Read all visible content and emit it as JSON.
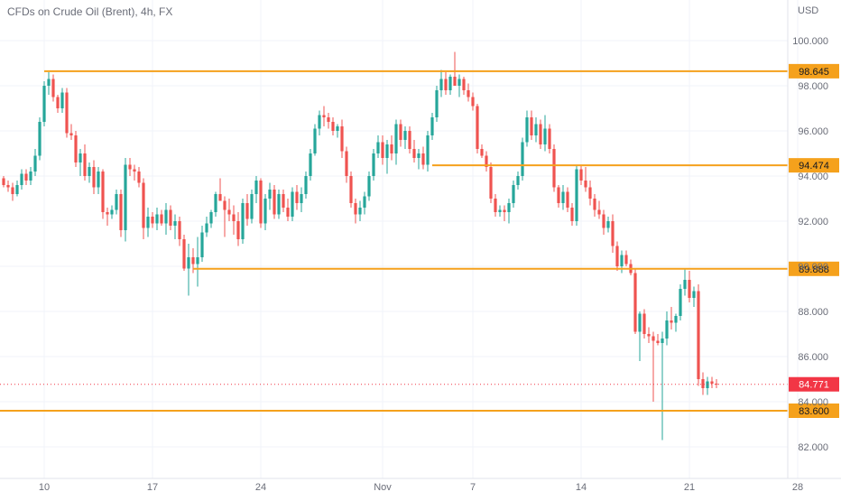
{
  "header": {
    "title": "CFDs on Crude Oil (Brent), 4h, FX",
    "currency": "USD"
  },
  "colors": {
    "up": "#26a69a",
    "down": "#ef5350",
    "level_line": "#f5a11c",
    "level_label_bg": "#f5a11c",
    "price_label_bg": "#f23645",
    "axis_text": "#6a6d78"
  },
  "chart_data": {
    "type": "candlestick",
    "ylim": [
      81.0,
      101.0
    ],
    "y_ticks": [
      82.0,
      84.0,
      86.0,
      88.0,
      90.0,
      92.0,
      94.0,
      96.0,
      98.0,
      100.0
    ],
    "y_tick_labels": [
      "82.000",
      "84.000",
      "86.000",
      "88.000",
      "90.000",
      "92.000",
      "94.000",
      "96.000",
      "98.000",
      "100.000"
    ],
    "x_ticks": [
      {
        "label": "10",
        "bar": 9
      },
      {
        "label": "17",
        "bar": 33
      },
      {
        "label": "24",
        "bar": 57
      },
      {
        "label": "Nov",
        "bar": 84
      },
      {
        "label": "7",
        "bar": 104
      },
      {
        "label": "14",
        "bar": 128
      },
      {
        "label": "21",
        "bar": 152
      },
      {
        "label": "28",
        "bar": 176
      }
    ],
    "candles": [
      [
        93.9,
        94.0,
        93.5,
        93.6
      ],
      [
        93.6,
        93.8,
        93.3,
        93.5
      ],
      [
        93.5,
        93.7,
        92.9,
        93.2
      ],
      [
        93.2,
        93.8,
        93.1,
        93.6
      ],
      [
        93.6,
        94.3,
        93.4,
        94.1
      ],
      [
        94.1,
        94.3,
        93.6,
        93.8
      ],
      [
        93.8,
        94.4,
        93.6,
        94.2
      ],
      [
        94.2,
        95.2,
        94.0,
        94.9
      ],
      [
        94.9,
        96.6,
        94.7,
        96.4
      ],
      [
        96.4,
        98.2,
        96.2,
        98.0
      ],
      [
        98.0,
        98.6,
        97.6,
        98.3
      ],
      [
        98.3,
        98.5,
        97.3,
        97.5
      ],
      [
        97.5,
        97.6,
        96.8,
        97.0
      ],
      [
        97.0,
        97.9,
        96.8,
        97.7
      ],
      [
        97.7,
        97.9,
        95.7,
        95.9
      ],
      [
        95.9,
        96.3,
        95.6,
        95.8
      ],
      [
        95.8,
        96.0,
        94.4,
        94.6
      ],
      [
        94.6,
        95.2,
        94.0,
        95.0
      ],
      [
        95.0,
        95.4,
        93.8,
        94.0
      ],
      [
        94.0,
        94.6,
        93.7,
        94.4
      ],
      [
        94.4,
        94.7,
        93.2,
        93.5
      ],
      [
        93.5,
        94.4,
        93.2,
        94.2
      ],
      [
        94.2,
        94.3,
        92.1,
        92.4
      ],
      [
        92.4,
        92.6,
        91.8,
        92.3
      ],
      [
        92.3,
        92.7,
        92.1,
        92.5
      ],
      [
        92.5,
        93.4,
        92.3,
        93.2
      ],
      [
        93.2,
        93.4,
        91.3,
        91.6
      ],
      [
        91.6,
        94.8,
        91.1,
        94.5
      ],
      [
        94.5,
        94.8,
        94.0,
        94.3
      ],
      [
        94.3,
        94.5,
        93.8,
        94.2
      ],
      [
        94.2,
        94.4,
        93.5,
        93.7
      ],
      [
        93.7,
        93.9,
        91.2,
        91.7
      ],
      [
        91.7,
        92.6,
        91.3,
        92.2
      ],
      [
        92.2,
        92.4,
        91.7,
        91.9
      ],
      [
        91.9,
        92.6,
        91.6,
        92.3
      ],
      [
        92.3,
        92.5,
        91.8,
        91.9
      ],
      [
        91.9,
        92.8,
        91.4,
        92.5
      ],
      [
        92.5,
        92.7,
        91.6,
        91.8
      ],
      [
        91.8,
        92.3,
        91.2,
        92.0
      ],
      [
        92.0,
        92.2,
        90.9,
        91.2
      ],
      [
        91.2,
        91.4,
        89.8,
        89.9
      ],
      [
        89.9,
        91.0,
        88.7,
        90.4
      ],
      [
        90.4,
        90.8,
        89.7,
        90.1
      ],
      [
        90.1,
        91.3,
        89.1,
        90.4
      ],
      [
        90.4,
        91.8,
        90.2,
        91.5
      ],
      [
        91.5,
        92.2,
        91.3,
        91.9
      ],
      [
        91.9,
        92.5,
        91.7,
        92.4
      ],
      [
        92.4,
        93.3,
        92.2,
        93.2
      ],
      [
        93.2,
        93.9,
        92.9,
        92.9
      ],
      [
        92.9,
        93.1,
        91.3,
        92.5
      ],
      [
        92.5,
        93.0,
        92.0,
        92.3
      ],
      [
        92.3,
        92.7,
        91.4,
        92.0
      ],
      [
        92.0,
        92.4,
        90.9,
        91.2
      ],
      [
        91.2,
        93.0,
        91.0,
        92.8
      ],
      [
        92.8,
        93.2,
        91.8,
        92.1
      ],
      [
        92.1,
        93.4,
        91.9,
        93.2
      ],
      [
        93.2,
        94.0,
        92.8,
        93.8
      ],
      [
        93.8,
        93.9,
        91.7,
        91.9
      ],
      [
        91.9,
        93.2,
        91.6,
        93.0
      ],
      [
        93.0,
        93.7,
        92.5,
        93.4
      ],
      [
        93.4,
        93.6,
        92.1,
        92.3
      ],
      [
        92.3,
        93.4,
        92.1,
        93.2
      ],
      [
        93.2,
        93.4,
        92.4,
        92.6
      ],
      [
        92.6,
        93.0,
        92.0,
        92.2
      ],
      [
        92.2,
        93.5,
        92.0,
        93.3
      ],
      [
        93.3,
        93.6,
        92.5,
        92.8
      ],
      [
        92.8,
        93.5,
        92.4,
        93.2
      ],
      [
        93.2,
        94.2,
        93.0,
        94.0
      ],
      [
        94.0,
        95.2,
        93.8,
        95.0
      ],
      [
        95.0,
        96.3,
        94.9,
        96.1
      ],
      [
        96.1,
        96.9,
        95.8,
        96.7
      ],
      [
        96.7,
        97.1,
        96.2,
        96.6
      ],
      [
        96.6,
        96.8,
        96.1,
        96.4
      ],
      [
        96.4,
        96.6,
        95.8,
        96.0
      ],
      [
        96.0,
        96.3,
        95.7,
        96.2
      ],
      [
        96.2,
        96.5,
        94.8,
        95.1
      ],
      [
        95.1,
        95.3,
        93.7,
        94.0
      ],
      [
        94.0,
        94.2,
        92.6,
        92.8
      ],
      [
        92.8,
        93.0,
        91.9,
        92.3
      ],
      [
        92.3,
        92.9,
        92.0,
        92.6
      ],
      [
        92.6,
        93.3,
        92.3,
        93.1
      ],
      [
        93.1,
        94.2,
        92.9,
        94.0
      ],
      [
        94.0,
        95.2,
        93.8,
        95.0
      ],
      [
        95.0,
        95.8,
        94.8,
        95.5
      ],
      [
        95.5,
        95.8,
        94.5,
        94.8
      ],
      [
        94.8,
        95.6,
        94.1,
        95.4
      ],
      [
        95.4,
        95.8,
        94.7,
        95.0
      ],
      [
        95.0,
        96.5,
        94.5,
        96.3
      ],
      [
        96.3,
        96.5,
        95.3,
        95.6
      ],
      [
        95.6,
        96.2,
        95.2,
        96.0
      ],
      [
        96.0,
        96.2,
        95.0,
        95.2
      ],
      [
        95.2,
        95.6,
        94.6,
        94.8
      ],
      [
        94.8,
        95.2,
        94.3,
        95.0
      ],
      [
        95.0,
        95.3,
        94.3,
        94.5
      ],
      [
        94.5,
        96.0,
        94.2,
        95.8
      ],
      [
        95.8,
        96.8,
        95.6,
        96.6
      ],
      [
        96.6,
        98.0,
        96.4,
        97.8
      ],
      [
        97.8,
        98.7,
        97.5,
        98.3
      ],
      [
        98.3,
        98.6,
        97.6,
        97.8
      ],
      [
        97.8,
        98.5,
        97.6,
        98.4
      ],
      [
        98.4,
        99.5,
        98.1,
        98.0
      ],
      [
        98.0,
        98.5,
        97.5,
        98.3
      ],
      [
        98.3,
        98.4,
        97.6,
        97.8
      ],
      [
        97.8,
        98.1,
        97.3,
        97.5
      ],
      [
        97.5,
        97.7,
        96.9,
        97.1
      ],
      [
        97.1,
        97.2,
        95.0,
        95.2
      ],
      [
        95.2,
        95.4,
        94.8,
        94.9
      ],
      [
        94.9,
        95.1,
        94.2,
        94.4
      ],
      [
        94.4,
        94.6,
        92.8,
        93.0
      ],
      [
        93.0,
        93.2,
        92.2,
        92.4
      ],
      [
        92.4,
        92.7,
        92.2,
        92.5
      ],
      [
        92.5,
        92.7,
        92.0,
        92.4
      ],
      [
        92.4,
        93.0,
        91.9,
        92.8
      ],
      [
        92.8,
        93.8,
        92.6,
        93.6
      ],
      [
        93.6,
        94.2,
        93.4,
        94.0
      ],
      [
        94.0,
        95.7,
        93.8,
        95.5
      ],
      [
        95.5,
        96.9,
        95.3,
        96.6
      ],
      [
        96.6,
        96.9,
        95.6,
        95.8
      ],
      [
        95.8,
        96.6,
        95.5,
        96.3
      ],
      [
        96.3,
        96.5,
        95.2,
        95.4
      ],
      [
        95.4,
        96.7,
        95.1,
        96.1
      ],
      [
        96.1,
        96.3,
        95.0,
        95.2
      ],
      [
        95.2,
        95.4,
        93.3,
        93.5
      ],
      [
        93.5,
        93.6,
        92.6,
        92.8
      ],
      [
        92.8,
        93.6,
        92.5,
        93.3
      ],
      [
        93.3,
        93.5,
        92.4,
        92.6
      ],
      [
        92.6,
        92.8,
        91.8,
        92.0
      ],
      [
        92.0,
        94.5,
        91.8,
        94.3
      ],
      [
        94.3,
        94.5,
        93.6,
        93.8
      ],
      [
        93.8,
        94.4,
        93.3,
        93.5
      ],
      [
        93.5,
        93.8,
        92.7,
        93.0
      ],
      [
        93.0,
        93.2,
        92.2,
        92.5
      ],
      [
        92.5,
        92.9,
        92.1,
        92.3
      ],
      [
        92.3,
        92.5,
        91.4,
        91.7
      ],
      [
        91.7,
        92.2,
        91.5,
        92.0
      ],
      [
        92.0,
        92.3,
        90.6,
        90.9
      ],
      [
        90.9,
        91.1,
        89.8,
        90.0
      ],
      [
        90.0,
        90.7,
        89.7,
        90.5
      ],
      [
        90.5,
        90.7,
        90.0,
        90.1
      ],
      [
        90.1,
        90.3,
        89.6,
        89.7
      ],
      [
        89.7,
        89.9,
        87.0,
        87.1
      ],
      [
        87.1,
        88.0,
        85.8,
        87.9
      ],
      [
        87.9,
        88.1,
        86.8,
        87.0
      ],
      [
        87.0,
        87.3,
        86.6,
        86.9
      ],
      [
        86.9,
        87.1,
        84.0,
        86.7
      ],
      [
        86.7,
        87.0,
        86.5,
        86.6
      ],
      [
        86.6,
        87.1,
        82.3,
        86.8
      ],
      [
        86.8,
        88.0,
        86.5,
        87.6
      ],
      [
        87.6,
        88.2,
        87.2,
        87.5
      ],
      [
        87.5,
        87.9,
        87.1,
        87.8
      ],
      [
        87.8,
        89.2,
        87.6,
        89.0
      ],
      [
        89.0,
        89.9,
        88.7,
        89.4
      ],
      [
        89.4,
        89.8,
        88.4,
        88.6
      ],
      [
        88.6,
        89.1,
        88.2,
        88.9
      ],
      [
        88.9,
        89.2,
        84.7,
        85.0
      ],
      [
        85.0,
        85.3,
        84.3,
        84.6
      ],
      [
        84.6,
        85.1,
        84.3,
        84.9
      ],
      [
        84.9,
        85.1,
        84.6,
        84.8
      ],
      [
        84.8,
        85.0,
        84.6,
        84.771
      ]
    ],
    "levels": [
      {
        "price": 98.645,
        "label": "98.645",
        "start_bar": 9
      },
      {
        "price": 94.474,
        "label": "94.474",
        "start_bar": 95
      },
      {
        "price": 89.888,
        "label": "89.888",
        "start_bar": 42
      },
      {
        "price": 83.6,
        "label": "83.600",
        "start_bar": 0
      }
    ],
    "last_price": {
      "price": 84.771,
      "label": "84.771"
    }
  }
}
